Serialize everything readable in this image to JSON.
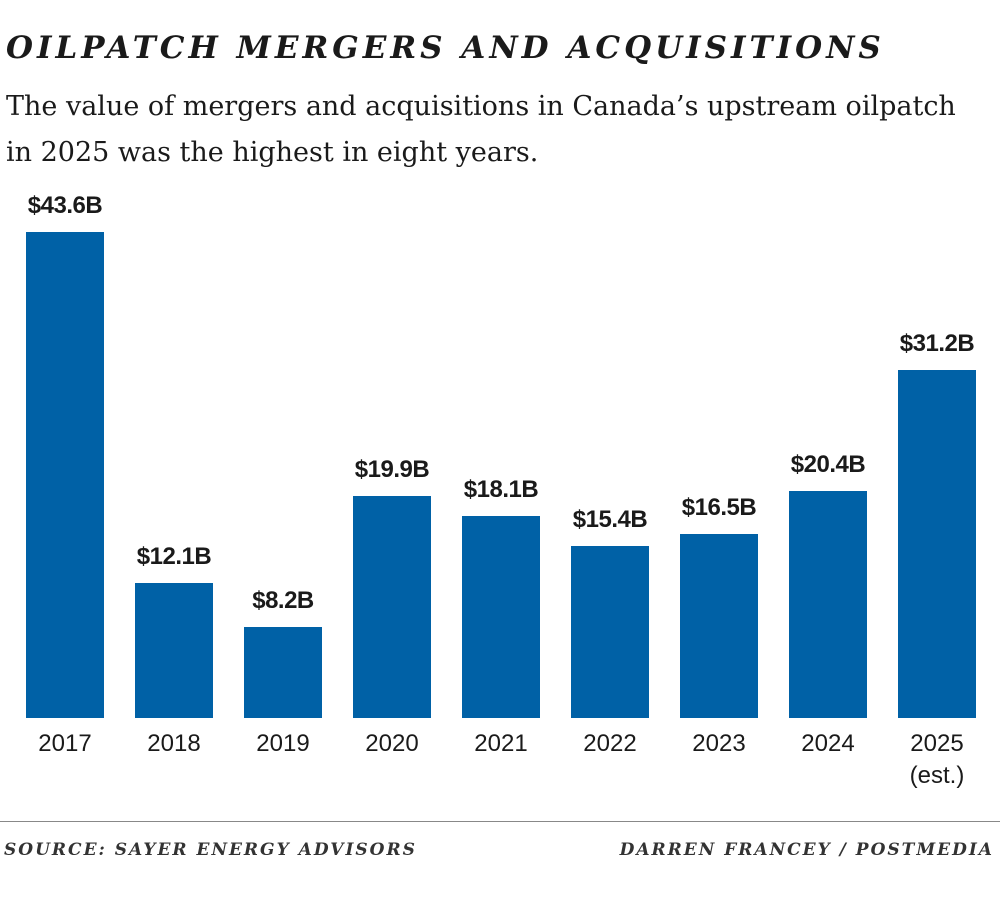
{
  "chart_data": {
    "type": "bar",
    "title": "OILPATCH MERGERS AND ACQUISITIONS",
    "subtitle": "The value of mergers and acquisitions in Canada’s upstream oilpatch in 2025 was the highest in eight years.",
    "categories": [
      "2017",
      "2018",
      "2019",
      "2020",
      "2021",
      "2022",
      "2023",
      "2024",
      "2025 (est.)"
    ],
    "values": [
      43.6,
      12.1,
      8.2,
      19.9,
      18.1,
      15.4,
      16.5,
      20.4,
      31.2
    ],
    "value_labels": [
      "$43.6B",
      "$12.1B",
      "$8.2B",
      "$19.9B",
      "$18.1B",
      "$15.4B",
      "$16.5B",
      "$20.4B",
      "$31.2B"
    ],
    "color": "#0061a6",
    "source": "SOURCE: SAYER ENERGY ADVISORS",
    "credit": "DARREN FRANCEY / POSTMEDIA"
  }
}
